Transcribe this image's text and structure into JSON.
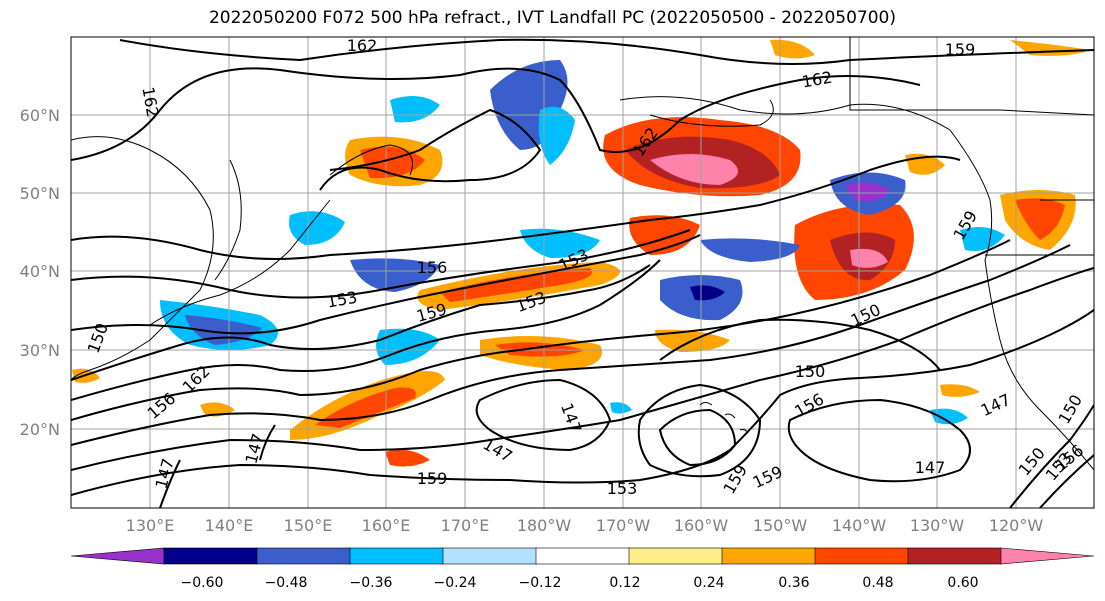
{
  "title": "2022050200 F072 500 hPa refract., IVT Landfall PC (2022050500 - 2022050700)",
  "lat_ticks": [
    "60°N",
    "50°N",
    "40°N",
    "30°N",
    "20°N"
  ],
  "lon_ticks": [
    "130°E",
    "140°E",
    "150°E",
    "160°E",
    "170°E",
    "180°W",
    "170°W",
    "160°W",
    "150°W",
    "140°W",
    "130°W",
    "120°W"
  ],
  "contour_labels": [
    "162",
    "159",
    "162",
    "162",
    "162",
    "156",
    "153",
    "153",
    "159",
    "153",
    "150",
    "162",
    "156",
    "147",
    "147",
    "147",
    "147",
    "159",
    "150",
    "153",
    "159",
    "159",
    "156",
    "147",
    "147",
    "150",
    "153",
    "156",
    "150",
    "150",
    "159"
  ],
  "colorbar": {
    "colors": [
      "#9932cc",
      "#00008b",
      "#3a5fcd",
      "#00bfff",
      "#b0e2ff",
      "#ffffff",
      "#ffee88",
      "#ffa500",
      "#ff4500",
      "#b22222",
      "#ff82ab"
    ],
    "labels": [
      "−0.60",
      "−0.48",
      "−0.36",
      "−0.24",
      "−0.12",
      "0.12",
      "0.24",
      "0.36",
      "0.48",
      "0.60"
    ]
  }
}
